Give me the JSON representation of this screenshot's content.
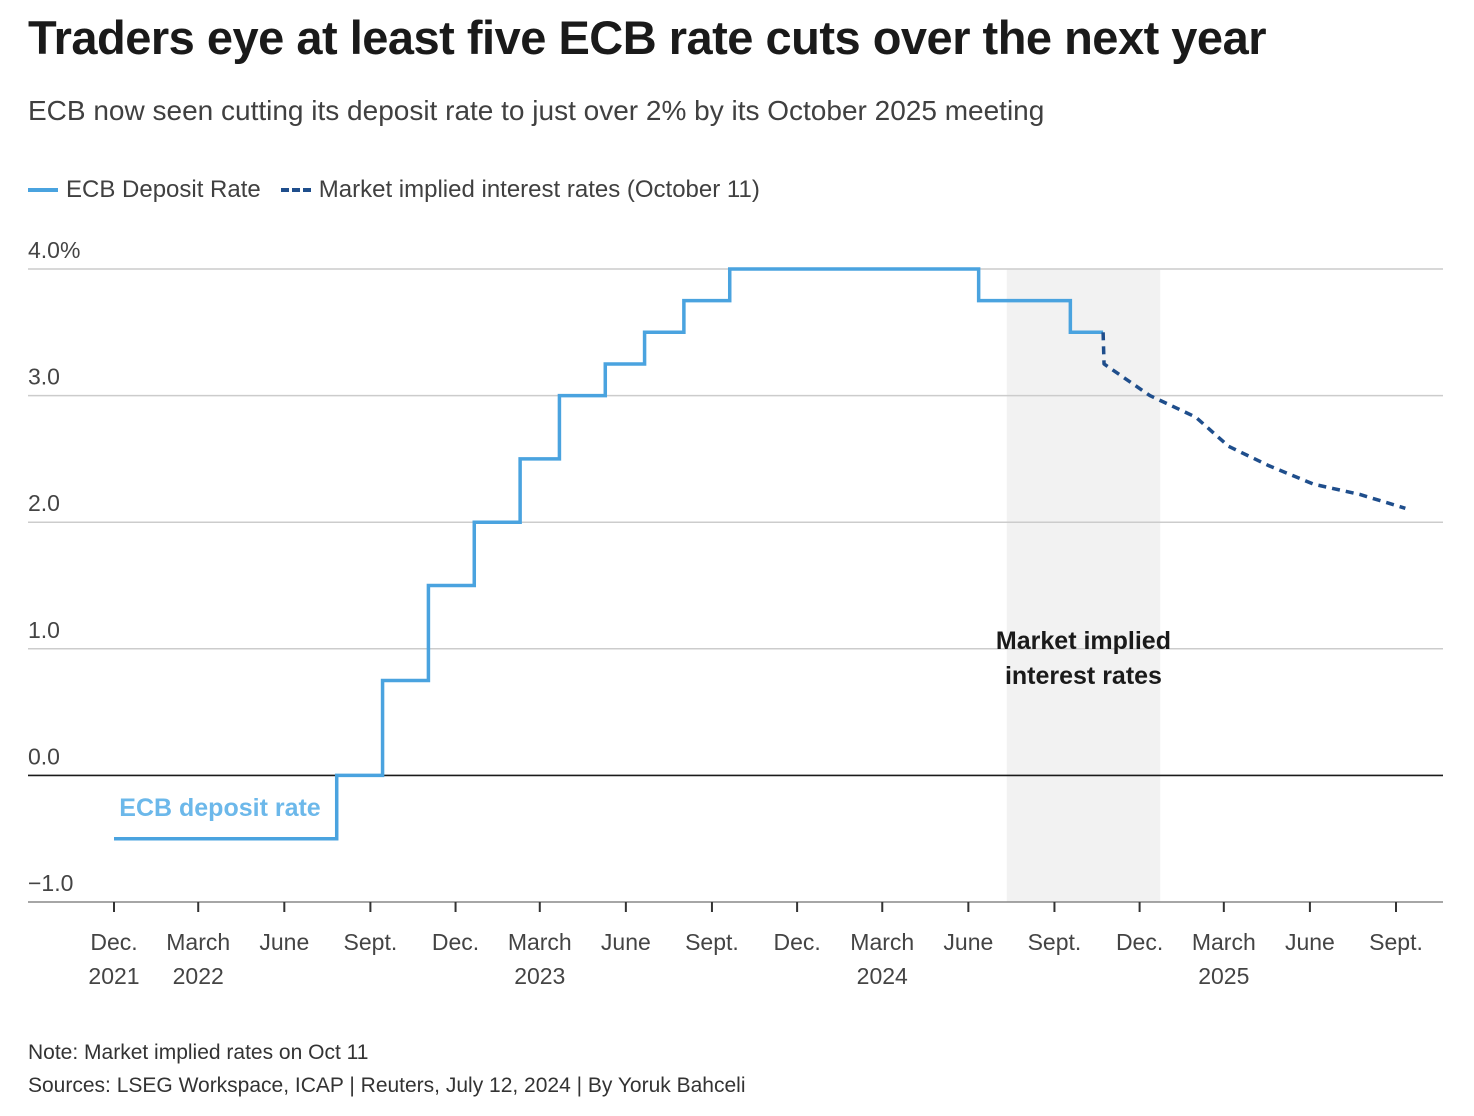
{
  "title": "Traders eye at least five ECB rate cuts over the next year",
  "subtitle": "ECB now seen cutting its deposit rate to just over 2% by its October 2025 meeting",
  "legend": {
    "deposit_label": "ECB Deposit Rate",
    "implied_label": "Market implied interest rates (October 11)"
  },
  "notes": {
    "note": "Note: Market implied rates on Oct 11",
    "sources": "Sources: LSEG Workspace, ICAP | Reuters, July 12, 2024 | By Yoruk Bahceli"
  },
  "colors": {
    "deposit": "#4aa3df",
    "implied": "#1f4e8c",
    "shade": "#f2f2f2",
    "grid": "#cccccc",
    "zero_line": "#1a1a1a",
    "inline_label": "#6cb8ea"
  },
  "chart_data": {
    "type": "line",
    "title": "Traders eye at least five ECB rate cuts over the next year",
    "ylim": [
      -1.0,
      4.0
    ],
    "y_ticks": [
      {
        "value": 4.0,
        "label": "4.0%"
      },
      {
        "value": 3.0,
        "label": "3.0"
      },
      {
        "value": 2.0,
        "label": "2.0"
      },
      {
        "value": 1.0,
        "label": "1.0"
      },
      {
        "value": 0.0,
        "label": "0.0"
      },
      {
        "value": -1.0,
        "label": "−1.0"
      }
    ],
    "x_range": [
      "2021-12-01",
      "2025-09-01"
    ],
    "x_ticks": [
      {
        "date": "2021-12-01",
        "line1": "Dec.",
        "line2": "2021"
      },
      {
        "date": "2022-03-01",
        "line1": "March",
        "line2": "2022"
      },
      {
        "date": "2022-06-01",
        "line1": "June",
        "line2": ""
      },
      {
        "date": "2022-09-01",
        "line1": "Sept.",
        "line2": ""
      },
      {
        "date": "2022-12-01",
        "line1": "Dec.",
        "line2": ""
      },
      {
        "date": "2023-03-01",
        "line1": "March",
        "line2": "2023"
      },
      {
        "date": "2023-06-01",
        "line1": "June",
        "line2": ""
      },
      {
        "date": "2023-09-01",
        "line1": "Sept.",
        "line2": ""
      },
      {
        "date": "2023-12-01",
        "line1": "Dec.",
        "line2": ""
      },
      {
        "date": "2024-03-01",
        "line1": "March",
        "line2": "2024"
      },
      {
        "date": "2024-06-01",
        "line1": "June",
        "line2": ""
      },
      {
        "date": "2024-09-01",
        "line1": "Sept.",
        "line2": ""
      },
      {
        "date": "2024-12-01",
        "line1": "Dec.",
        "line2": ""
      },
      {
        "date": "2025-03-01",
        "line1": "March",
        "line2": "2025"
      },
      {
        "date": "2025-06-01",
        "line1": "June",
        "line2": ""
      },
      {
        "date": "2025-09-01",
        "line1": "Sept.",
        "line2": ""
      }
    ],
    "shaded_region": {
      "from": "2024-07-12",
      "to": "2024-12-23",
      "label_line1": "Market implied",
      "label_line2": "interest rates"
    },
    "inline_label": "ECB deposit rate",
    "series": [
      {
        "name": "ECB Deposit Rate",
        "style": "step",
        "x": [
          "2021-12-01",
          "2022-07-27",
          "2022-09-14",
          "2022-11-02",
          "2022-12-21",
          "2023-02-08",
          "2023-03-22",
          "2023-05-10",
          "2023-06-21",
          "2023-08-02",
          "2023-09-20",
          "2024-06-12",
          "2024-09-18",
          "2024-10-23"
        ],
        "y": [
          -0.5,
          0.0,
          0.75,
          1.5,
          2.0,
          2.5,
          3.0,
          3.25,
          3.5,
          3.75,
          4.0,
          3.75,
          3.5,
          3.5
        ]
      },
      {
        "name": "Market implied interest rates (October 11)",
        "style": "dashed",
        "x": [
          "2024-10-23",
          "2024-10-24",
          "2024-12-12",
          "2025-01-30",
          "2025-03-06",
          "2025-04-17",
          "2025-06-05",
          "2025-07-24",
          "2025-09-11"
        ],
        "y": [
          3.5,
          3.25,
          3.0,
          2.83,
          2.6,
          2.45,
          2.3,
          2.22,
          2.11
        ]
      }
    ]
  }
}
